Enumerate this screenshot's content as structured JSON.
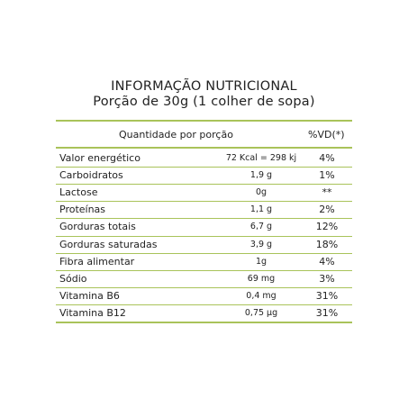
{
  "header": {
    "title": "INFORMAÇÃO NUTRICIONAL",
    "subtitle": "Porção de 30g (1 colher de sopa)"
  },
  "table": {
    "header": [
      "Quantidade por porção",
      "%VD(*)"
    ],
    "rows": [
      [
        "Valor energético",
        "72 Kcal = 298 kj",
        "4%"
      ],
      [
        "Carboidratos",
        "1,9 g",
        "1%"
      ],
      [
        "Lactose",
        "0g",
        "**"
      ],
      [
        "Proteínas",
        "1,1 g",
        "2%"
      ],
      [
        "Gorduras totais",
        "6,7 g",
        "12%"
      ],
      [
        "Gorduras saturadas",
        "3,9 g",
        "18%"
      ],
      [
        "Fibra alimentar",
        "1g",
        "4%"
      ],
      [
        "Sódio",
        "69 mg",
        "3%"
      ],
      [
        "Vitamina B6",
        "0,4 mg",
        "31%"
      ],
      [
        "Vitamina B12",
        "0,75 µg",
        "31%"
      ]
    ]
  }
}
